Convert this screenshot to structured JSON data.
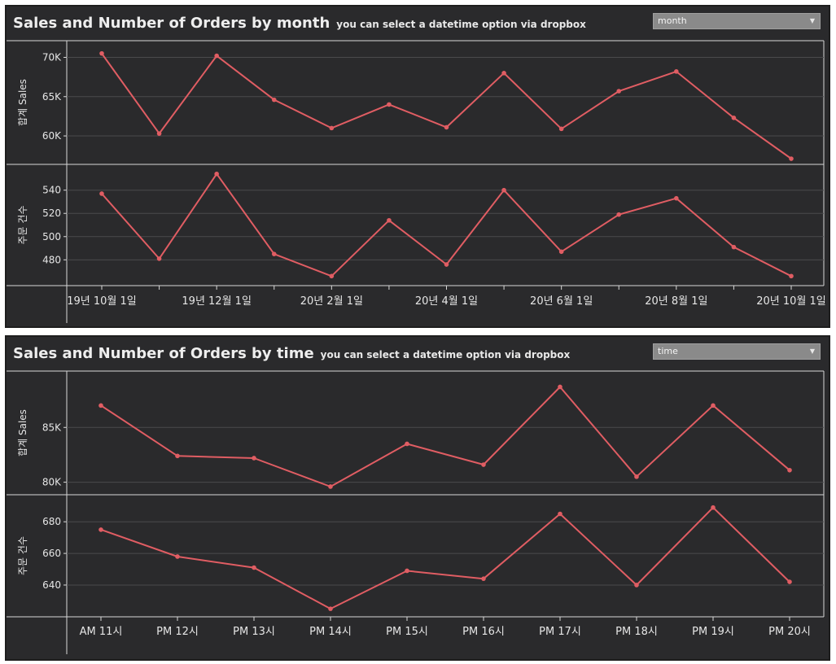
{
  "panels": {
    "month": {
      "title": "Sales and Number of Orders by month",
      "subtitle": "you can select a datetime option via dropbox",
      "dropdown_value": "month"
    },
    "time": {
      "title": "Sales and Number of Orders by time",
      "subtitle": "you can select a datetime option via dropbox",
      "dropdown_value": "time"
    }
  },
  "colors": {
    "line": "#e05d63",
    "panel_bg": "#2a2a2c",
    "grid": "#4a4a4c",
    "text": "#e6e6e6"
  },
  "chart_data": [
    {
      "type": "line",
      "x_tick_labels": [
        "19년 10월 1일",
        "19년 12월 1일",
        "20년 2월 1일",
        "20년 4월 1일",
        "20년 6월 1일",
        "20년 8월 1일",
        "20년 10월 1일"
      ],
      "subplots": [
        {
          "ylabel": "합계 Sales",
          "ylim": [
            57000,
            71500
          ],
          "y_ticks": [
            60000,
            65000,
            70000
          ],
          "y_tick_labels": [
            "60K",
            "65K",
            "70K"
          ],
          "values": [
            70500,
            60300,
            70200,
            64600,
            61000,
            64000,
            61100,
            68000,
            60900,
            65700,
            68200,
            62300,
            57100
          ]
        },
        {
          "ylabel": "주문 건수",
          "ylim": [
            462,
            558
          ],
          "y_ticks": [
            480,
            500,
            520,
            540
          ],
          "y_tick_labels": [
            "480",
            "500",
            "520",
            "540"
          ],
          "values": [
            537,
            481,
            554,
            485,
            466,
            514,
            476,
            540,
            487,
            519,
            533,
            491,
            466
          ]
        }
      ]
    },
    {
      "type": "line",
      "categories": [
        "AM 11시",
        "PM 12시",
        "PM 13시",
        "PM 14시",
        "PM 15시",
        "PM 16시",
        "PM 17시",
        "PM 18시",
        "PM 19시",
        "PM 20시"
      ],
      "subplots": [
        {
          "ylabel": "합계 Sales",
          "ylim": [
            79300,
            89700
          ],
          "y_ticks": [
            80000,
            85000
          ],
          "y_tick_labels": [
            "80K",
            "85K"
          ],
          "values": [
            87000,
            82400,
            82200,
            79600,
            83500,
            81600,
            88700,
            80500,
            87000,
            81100
          ]
        },
        {
          "ylabel": "주문 건수",
          "ylim": [
            623,
            694
          ],
          "y_ticks": [
            640,
            660,
            680
          ],
          "y_tick_labels": [
            "640",
            "660",
            "680"
          ],
          "values": [
            675,
            658,
            651,
            625,
            649,
            644,
            685,
            640,
            689,
            642
          ]
        }
      ]
    }
  ]
}
